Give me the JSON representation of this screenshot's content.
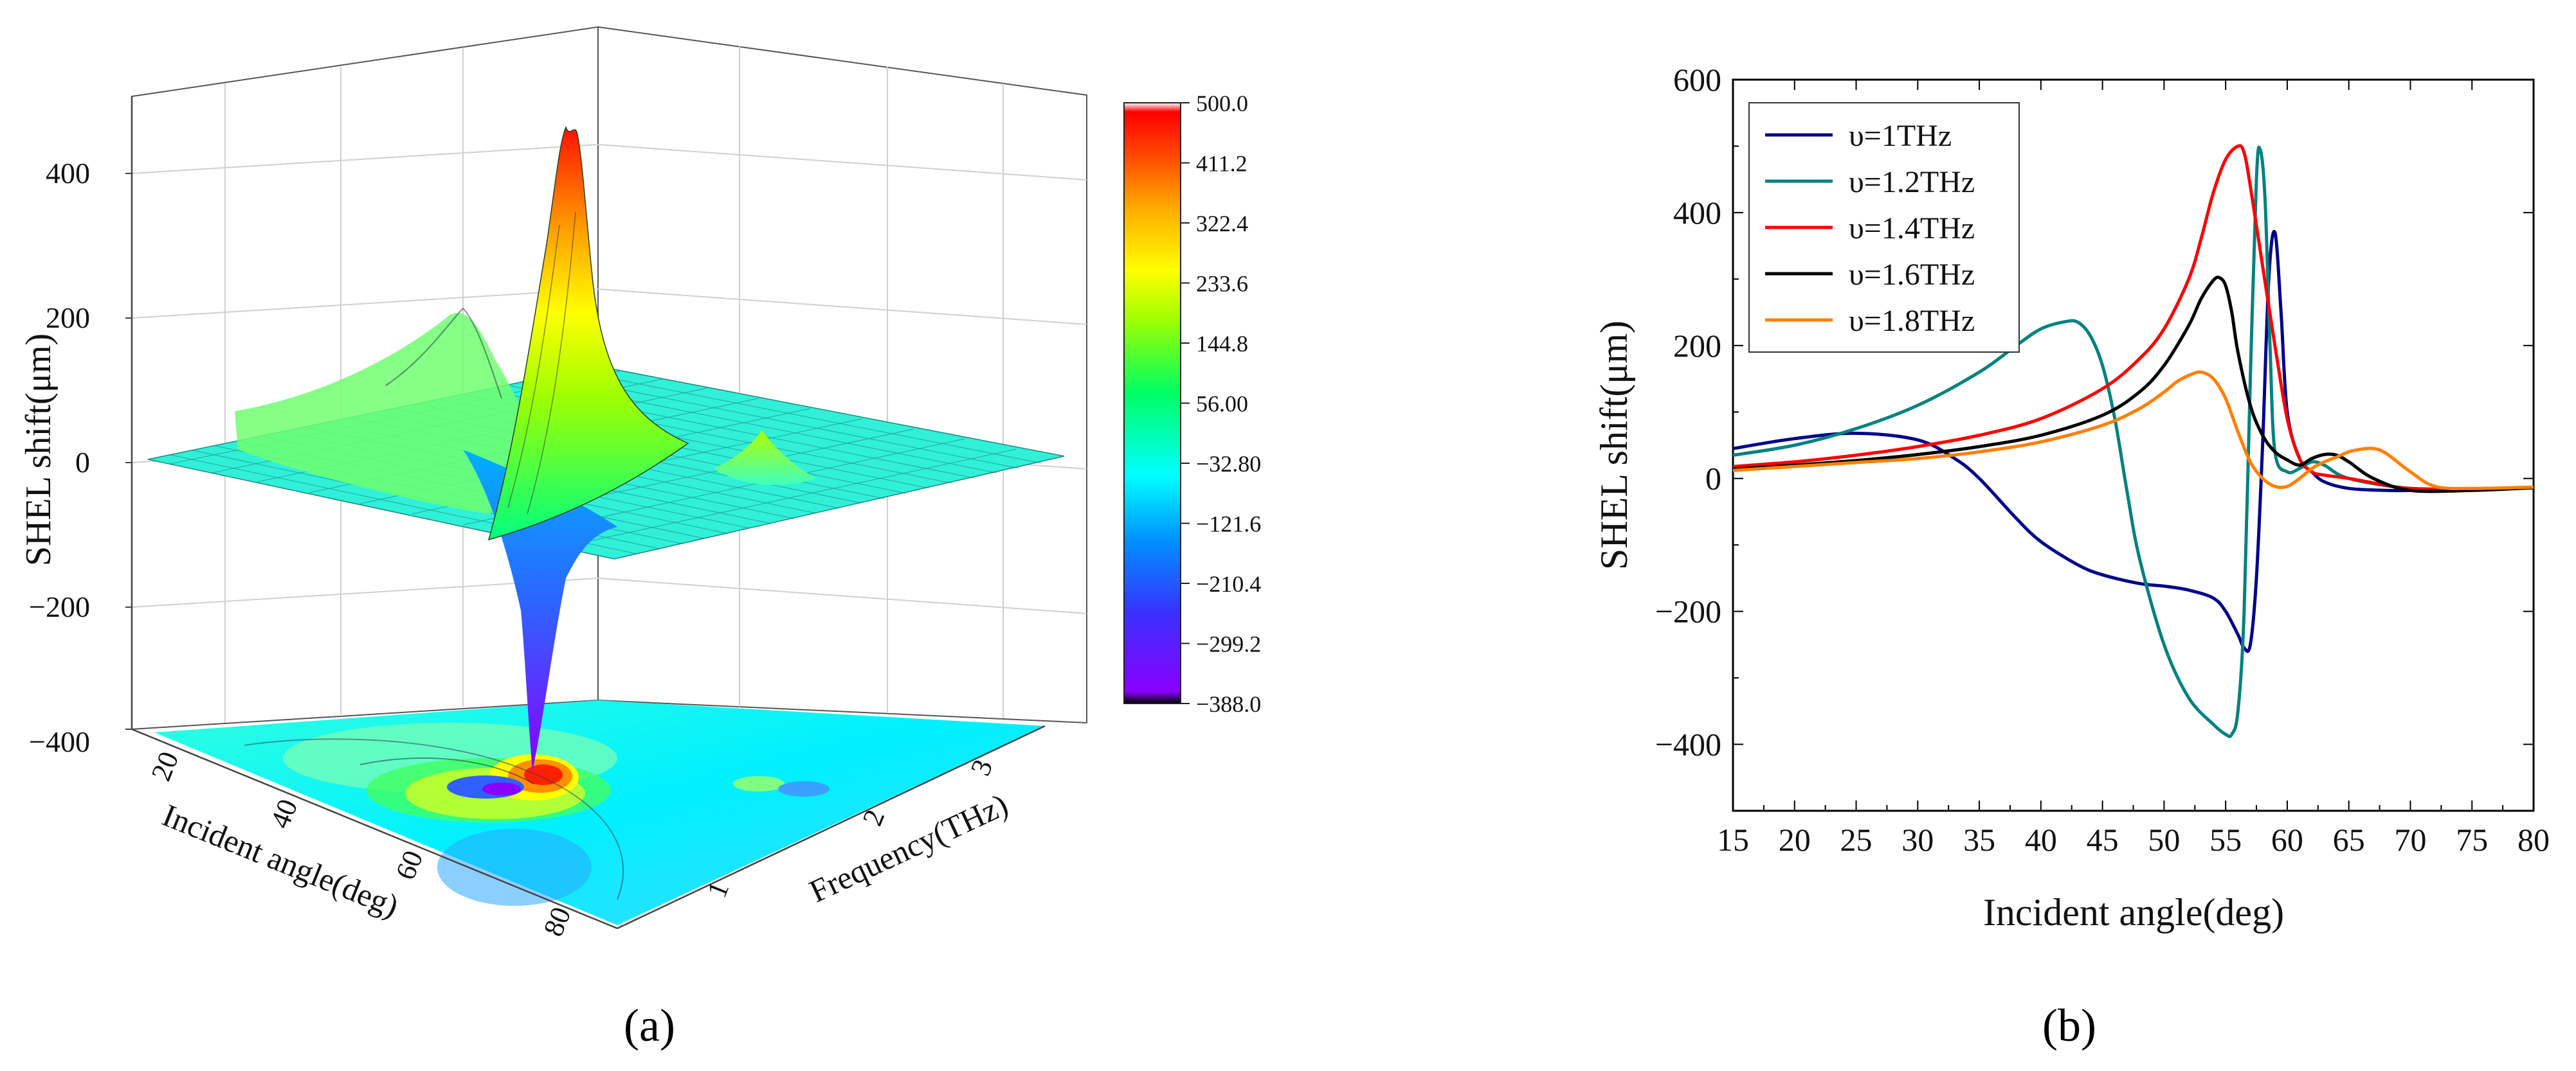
{
  "panel_labels": {
    "a": "(a)",
    "b": "(b)"
  },
  "chart_data": [
    {
      "type": "surface3d",
      "zlabel": "SHEL shift(μm)",
      "xlabel": "Incident angle(deg)",
      "ylabel": "Frequency(THz)",
      "x_ticks": [
        "20",
        "40",
        "60",
        "80"
      ],
      "y_ticks": [
        "1",
        "2",
        "3"
      ],
      "z_ticks": [
        "400",
        "200",
        "0",
        "−200",
        "−400"
      ],
      "zlim": [
        -400,
        500
      ],
      "colorbar": {
        "labels": [
          "500.0",
          "411.2",
          "322.4",
          "233.6",
          "144.8",
          "56.00",
          "−32.80",
          "−121.6",
          "−210.4",
          "−299.2",
          "−388.0"
        ],
        "min": -388.0,
        "max": 500.0,
        "colors": [
          "#000000",
          "#8a00ff",
          "#3a30ff",
          "#0090ff",
          "#00ffff",
          "#00ff60",
          "#a0ff00",
          "#ffff00",
          "#ffb000",
          "#ff4000",
          "#ff0000",
          "#ffffff"
        ]
      },
      "peaks": {
        "max": 500,
        "min": -388
      }
    },
    {
      "type": "line",
      "xlabel": "Incident angle(deg)",
      "ylabel": "SHEL shift(μm)",
      "xlim": [
        15,
        80
      ],
      "ylim": [
        -500,
        600
      ],
      "x_ticks": [
        15,
        20,
        25,
        30,
        35,
        40,
        45,
        50,
        55,
        60,
        65,
        70,
        75,
        80
      ],
      "y_ticks": [
        600,
        400,
        200,
        0,
        -200,
        -400
      ],
      "legend_position": "top-left",
      "series": [
        {
          "name": "υ=1THz",
          "color": "#00008b",
          "x": [
            15,
            20,
            25,
            30,
            33,
            35,
            38,
            40,
            43,
            45,
            48,
            50,
            52,
            54,
            55,
            56,
            56.5,
            57,
            57.5,
            58,
            58.5,
            59,
            59.5,
            60,
            61,
            62,
            63,
            65,
            68,
            70,
            75,
            80
          ],
          "y": [
            45,
            60,
            68,
            58,
            30,
            0,
            -60,
            -95,
            -130,
            -145,
            -158,
            -162,
            -168,
            -180,
            -200,
            -235,
            -255,
            -250,
            -150,
            50,
            300,
            370,
            250,
            100,
            30,
            10,
            -5,
            -15,
            -18,
            -18,
            -16,
            -14
          ]
        },
        {
          "name": "υ=1.2THz",
          "color": "#00827f",
          "x": [
            15,
            20,
            25,
            30,
            35,
            38,
            40,
            42,
            43,
            44,
            45,
            46,
            47,
            48,
            50,
            52,
            54,
            55,
            55.5,
            56,
            56.5,
            57,
            57.5,
            57.8,
            58.2,
            58.6,
            59,
            60,
            61,
            62,
            63,
            65,
            70,
            75,
            80
          ],
          "y": [
            35,
            50,
            75,
            110,
            160,
            200,
            225,
            236,
            235,
            215,
            170,
            90,
            -20,
            -120,
            -250,
            -330,
            -370,
            -385,
            -385,
            -350,
            -200,
            150,
            450,
            495,
            420,
            200,
            40,
            10,
            15,
            25,
            20,
            0,
            -15,
            -16,
            -14
          ]
        },
        {
          "name": "υ=1.4THz",
          "color": "#ff0000",
          "x": [
            15,
            20,
            25,
            30,
            35,
            40,
            45,
            48,
            50,
            52,
            53,
            54,
            55,
            56,
            56.5,
            57,
            58,
            59,
            60,
            61,
            62,
            63,
            65,
            68,
            70,
            75,
            80
          ],
          "y": [
            18,
            25,
            35,
            48,
            65,
            90,
            135,
            180,
            225,
            300,
            360,
            430,
            480,
            500,
            490,
            440,
            320,
            200,
            90,
            30,
            10,
            5,
            0,
            -10,
            -15,
            -16,
            -14
          ]
        },
        {
          "name": "υ=1.6THz",
          "color": "#000000",
          "x": [
            15,
            20,
            25,
            30,
            35,
            40,
            45,
            48,
            50,
            52,
            53,
            54,
            54.5,
            55,
            55.5,
            56,
            57,
            58,
            59,
            60,
            61,
            62,
            63,
            64,
            65,
            67,
            70,
            75,
            80
          ],
          "y": [
            14,
            20,
            27,
            36,
            48,
            65,
            95,
            130,
            170,
            230,
            270,
            298,
            302,
            290,
            250,
            190,
            110,
            65,
            40,
            28,
            20,
            30,
            36,
            35,
            25,
            0,
            -18,
            -18,
            -14
          ]
        },
        {
          "name": "υ=1.8THz",
          "color": "#ff8000",
          "x": [
            15,
            20,
            25,
            30,
            35,
            40,
            45,
            48,
            50,
            51,
            52,
            53,
            54,
            55,
            56,
            57,
            58,
            59,
            60,
            61,
            62,
            63,
            64,
            65,
            66,
            67,
            68,
            70,
            72,
            75,
            80
          ],
          "y": [
            12,
            18,
            24,
            30,
            40,
            55,
            80,
            105,
            130,
            145,
            155,
            160,
            150,
            120,
            70,
            25,
            0,
            -12,
            -12,
            0,
            15,
            25,
            32,
            40,
            44,
            45,
            38,
            10,
            -12,
            -15,
            -13
          ]
        }
      ]
    }
  ]
}
